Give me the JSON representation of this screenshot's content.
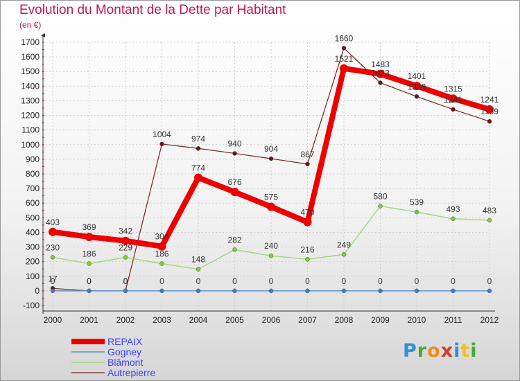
{
  "header": {
    "title": "Evolution du Montant de la Dette par Habitant",
    "subtitle": "(en €)"
  },
  "logo": {
    "letters": [
      "P",
      "r",
      "o",
      "x",
      "i",
      "t",
      "i"
    ],
    "colors": [
      "#2f8fd8",
      "#4aa83a",
      "#f08c1c",
      "#d93a2a",
      "#2f8fd8",
      "#f0c020",
      "#4aa83a"
    ]
  },
  "chart_data": {
    "type": "line",
    "x": [
      "2000",
      "2001",
      "2002",
      "2003",
      "2004",
      "2005",
      "2006",
      "2007",
      "2008",
      "2009",
      "2010",
      "2011",
      "2012"
    ],
    "ylim": [
      -100,
      1700
    ],
    "yticks": [
      -100,
      0,
      100,
      200,
      300,
      400,
      500,
      600,
      700,
      800,
      900,
      1000,
      1100,
      1200,
      1300,
      1400,
      1500,
      1600,
      1700
    ],
    "grid": true,
    "legend_position": "bottom-left",
    "series": [
      {
        "name": "REPAIX",
        "color": "#ee0000",
        "marker": "#ee0000",
        "width": 8,
        "values": [
          403,
          369,
          342,
          304,
          774,
          676,
          575,
          470,
          1521,
          1483,
          1401,
          1315,
          1241
        ],
        "labels": [
          "403",
          "369",
          "342",
          "304",
          "774",
          "676",
          "575",
          "470",
          "1521",
          "1483",
          "1401",
          "1315",
          "1241"
        ]
      },
      {
        "name": "Gogney",
        "color": "#5b95c8",
        "marker": "#3a7fd0",
        "width": 1.5,
        "values": [
          0,
          0,
          0,
          0,
          0,
          0,
          0,
          0,
          0,
          0,
          0,
          0,
          0
        ],
        "labels": [
          "0",
          "0",
          "0",
          "0",
          "0",
          "0",
          "0",
          "0",
          "0",
          "0",
          "0",
          "0",
          "0"
        ]
      },
      {
        "name": "Blâmont",
        "color": "#a2d97c",
        "marker": "#7ccc3a",
        "width": 1.5,
        "values": [
          230,
          186,
          229,
          186,
          148,
          282,
          240,
          216,
          249,
          580,
          539,
          493,
          483
        ],
        "labels": [
          "230",
          "186",
          "229",
          "186",
          "148",
          "282",
          "240",
          "216",
          "249",
          "580",
          "539",
          "493",
          "483"
        ]
      },
      {
        "name": "Autrepierre",
        "color": "#7a2020",
        "marker": "#6a1212",
        "width": 1.2,
        "values": [
          17,
          0,
          0,
          1004,
          974,
          940,
          904,
          867,
          1660,
          1423,
          1329,
          1241,
          1159
        ],
        "labels": [
          "17",
          "0",
          "0",
          "1004",
          "974",
          "940",
          "904",
          "867",
          "1660",
          "1423",
          "1329",
          "1241",
          "1159"
        ]
      }
    ]
  }
}
